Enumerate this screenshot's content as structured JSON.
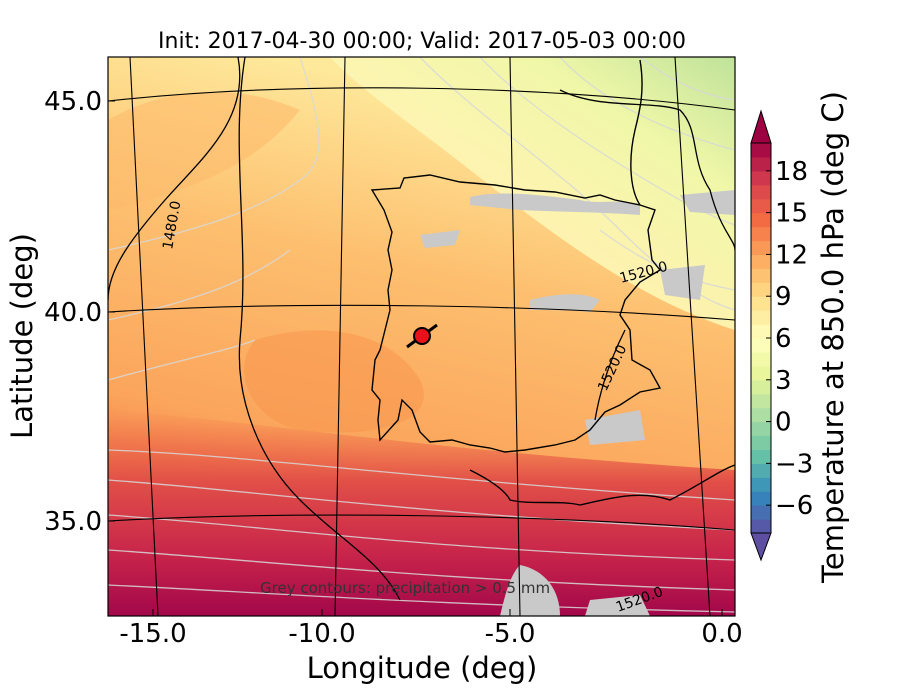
{
  "chart_data": {
    "type": "heatmap",
    "title": "Init: 2017-04-30 00:00; Valid: 2017-05-03 00:00",
    "xlabel": "Longitude (deg)",
    "ylabel": "Latitude (deg)",
    "xlim": [
      -15.9,
      0.2
    ],
    "ylim": [
      32.8,
      46.1
    ],
    "x_ticks": [
      -15.0,
      -10.0,
      -5.0,
      0.0
    ],
    "x_tick_labels": [
      "-15.0",
      "-10.0",
      "-5.0",
      "0.0"
    ],
    "y_ticks": [
      35.0,
      40.0,
      45.0
    ],
    "y_tick_labels": [
      "35.0",
      "40.0",
      "45.0"
    ],
    "colorbar": {
      "label": "Temperature at 850.0 hPa (deg C)",
      "min": -8,
      "max": 20,
      "step": 1,
      "extend": "both",
      "ticks": [
        -6,
        -3,
        0,
        3,
        6,
        9,
        12,
        15,
        18
      ],
      "tick_labels": [
        "−6",
        "−3",
        "0",
        "3",
        "6",
        "9",
        "12",
        "15",
        "18"
      ],
      "colormap": "Spectral_r",
      "colors": [
        "#5e4fa2",
        "#3288bd",
        "#66c2a5",
        "#abdda4",
        "#e6f598",
        "#ffffbf",
        "#fee08b",
        "#fdae61",
        "#f46d43",
        "#d53e4f",
        "#9e0142"
      ]
    },
    "geopotential_contour_labels": [
      "1480.0",
      "1520.0",
      "1520.0",
      "1520.0"
    ],
    "annotation": "Grey contours: precipitation > 0.5 mm",
    "marker": {
      "lon": -7.6,
      "lat": 39.3,
      "color": "#e8101a"
    }
  }
}
